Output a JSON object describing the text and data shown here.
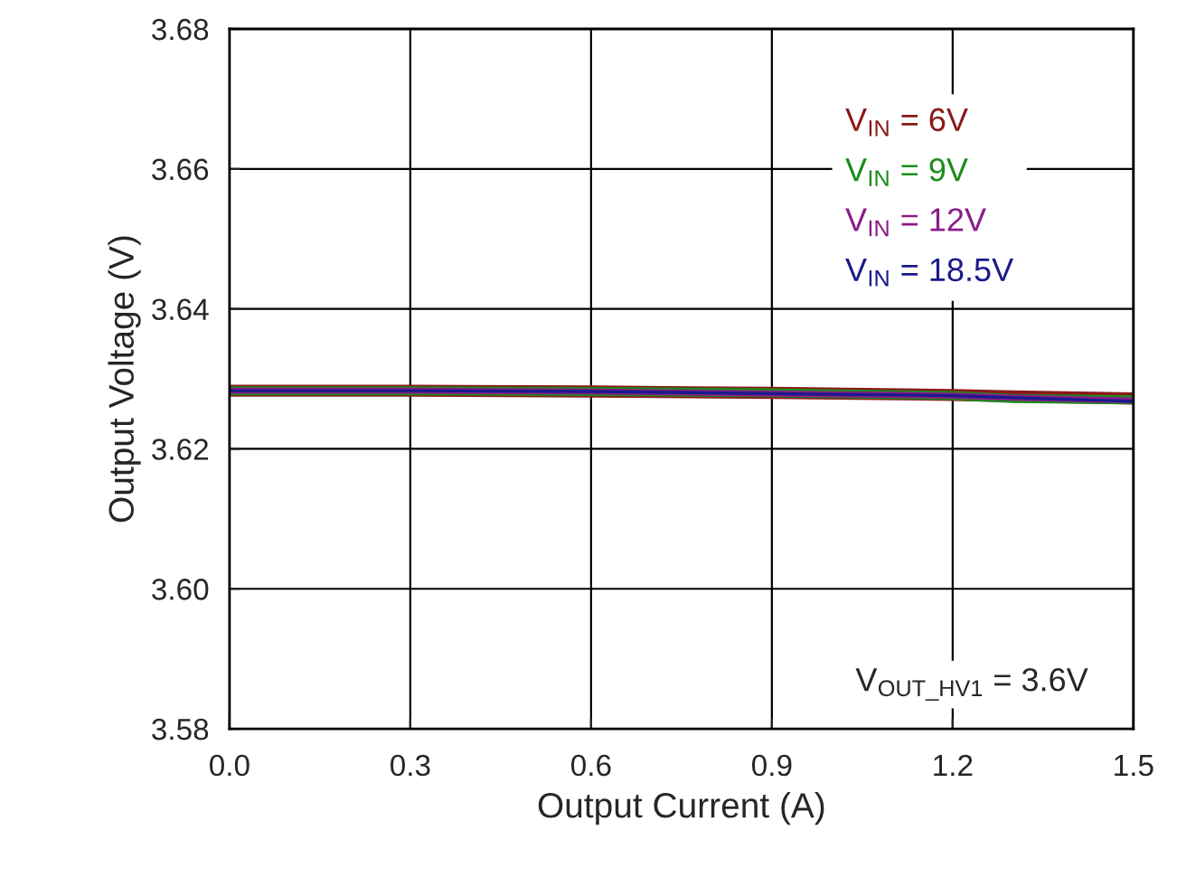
{
  "chart_data": {
    "type": "line",
    "xlabel": "Output Current (A)",
    "ylabel": "Output Voltage (V)",
    "x": [
      0,
      0.3,
      0.6,
      0.9,
      1.2,
      1.3,
      1.5
    ],
    "series": [
      {
        "name": "V$_{IN}$ = 6V",
        "color": "#8b1a1a",
        "values": [
          3.6283,
          3.6283,
          3.6282,
          3.628,
          3.6277,
          3.6275,
          3.6272
        ]
      },
      {
        "name": "V$_{IN}$ = 9V",
        "color": "#1a8c1a",
        "values": [
          3.6283,
          3.6283,
          3.6282,
          3.628,
          3.6276,
          3.6272,
          3.627
        ]
      },
      {
        "name": "V$_{IN}$ = 12V",
        "color": "#8b1a8b",
        "values": [
          3.6283,
          3.6283,
          3.6282,
          3.6279,
          3.6276,
          3.6273,
          3.6269
        ]
      },
      {
        "name": "V$_{IN}$ = 18.5V",
        "color": "#1a1a8b",
        "values": [
          3.6283,
          3.6283,
          3.6282,
          3.6279,
          3.6276,
          3.6273,
          3.6268
        ]
      }
    ],
    "xlim": [
      0,
      1.5
    ],
    "ylim": [
      3.58,
      3.68
    ],
    "xticks": [
      {
        "value": 0,
        "label": "0.0"
      },
      0.3,
      0.6,
      0.9,
      1.2,
      1.5
    ],
    "yticks": [
      3.58,
      {
        "value": 3.6,
        "label": "3.60"
      },
      3.62,
      3.64,
      3.66,
      3.68
    ],
    "annotations": [
      "V$_{OUT_HV1}$ = 3.6V"
    ],
    "grid": true,
    "legend": "top right",
    "marker": "none",
    "line_style": "solid"
  }
}
